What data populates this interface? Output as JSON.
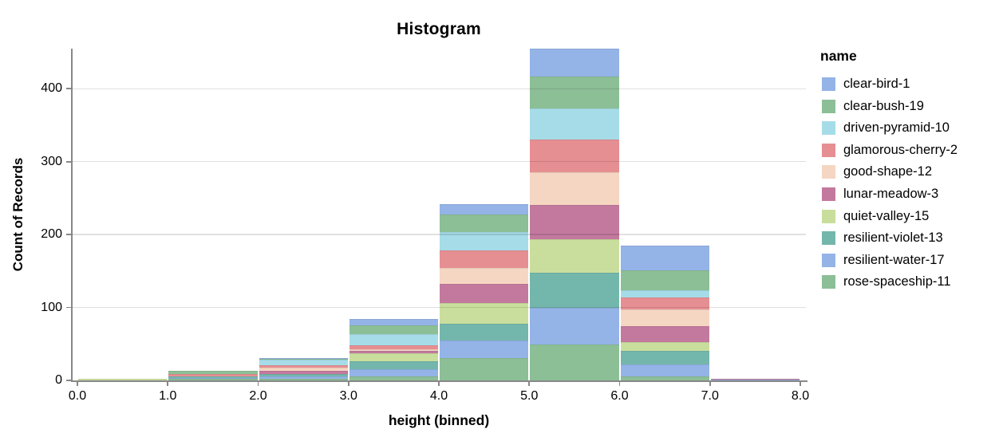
{
  "title": "Histogram",
  "background": "#ffffff",
  "x_axis": {
    "title": "height (binned)",
    "tick_labels": [
      "0.0",
      "1.0",
      "2.0",
      "3.0",
      "4.0",
      "5.0",
      "6.0",
      "7.0",
      "8.0"
    ]
  },
  "y_axis": {
    "title": "Count of Records",
    "ticks": [
      0,
      100,
      200,
      300,
      400
    ]
  },
  "legend": {
    "title": "name"
  },
  "axis_colors": {
    "domain": "#888888",
    "grid": "rgba(0,0,0,0.12)",
    "text": "#000000"
  },
  "chart_data": {
    "type": "bar",
    "subtype": "stacked-histogram",
    "title": "Histogram",
    "xlabel": "height (binned)",
    "ylabel": "Count of Records",
    "xlim": [
      0,
      8
    ],
    "ylim": [
      0,
      455
    ],
    "grid": true,
    "legend_position": "right",
    "bin_edges": [
      0,
      1,
      2,
      3,
      4,
      5,
      6,
      7,
      8
    ],
    "bin_totals": [
      2,
      13,
      31,
      84,
      242,
      455,
      185,
      2
    ],
    "stack_note": "stacked bottom-to-top in reverse legend order (rose-spaceship-11 at bottom, clear-bird-1 on top)",
    "series": [
      {
        "name": "clear-bird-1",
        "color": "#94b3e7",
        "values": [
          0,
          0,
          1,
          9,
          15,
          38,
          34,
          0
        ]
      },
      {
        "name": "clear-bush-19",
        "color": "#8cbf96",
        "values": [
          0,
          4,
          1,
          11,
          23,
          44,
          27,
          0
        ]
      },
      {
        "name": "driven-pyramid-10",
        "color": "#a6dce8",
        "values": [
          0,
          0,
          8,
          16,
          26,
          43,
          10,
          0
        ]
      },
      {
        "name": "glamorous-cherry-2",
        "color": "#e68f93",
        "values": [
          0,
          4,
          3,
          5,
          24,
          45,
          17,
          0
        ]
      },
      {
        "name": "good-shape-12",
        "color": "#f5d6c2",
        "values": [
          0,
          0,
          5,
          2,
          22,
          44,
          23,
          0
        ]
      },
      {
        "name": "lunar-meadow-3",
        "color": "#c3799e",
        "values": [
          0,
          0,
          4,
          4,
          26,
          47,
          22,
          1
        ]
      },
      {
        "name": "quiet-valley-15",
        "color": "#c9de9d",
        "values": [
          2,
          0,
          0,
          11,
          28,
          46,
          12,
          0
        ]
      },
      {
        "name": "resilient-violet-13",
        "color": "#73b6ac",
        "values": [
          0,
          2,
          3,
          11,
          23,
          48,
          18,
          0
        ]
      },
      {
        "name": "resilient-water-17",
        "color": "#94b3e7",
        "values": [
          0,
          1,
          4,
          9,
          24,
          51,
          17,
          1
        ]
      },
      {
        "name": "rose-spaceship-11",
        "color": "#8cbf96",
        "values": [
          0,
          2,
          2,
          6,
          31,
          49,
          5,
          0
        ]
      }
    ]
  }
}
